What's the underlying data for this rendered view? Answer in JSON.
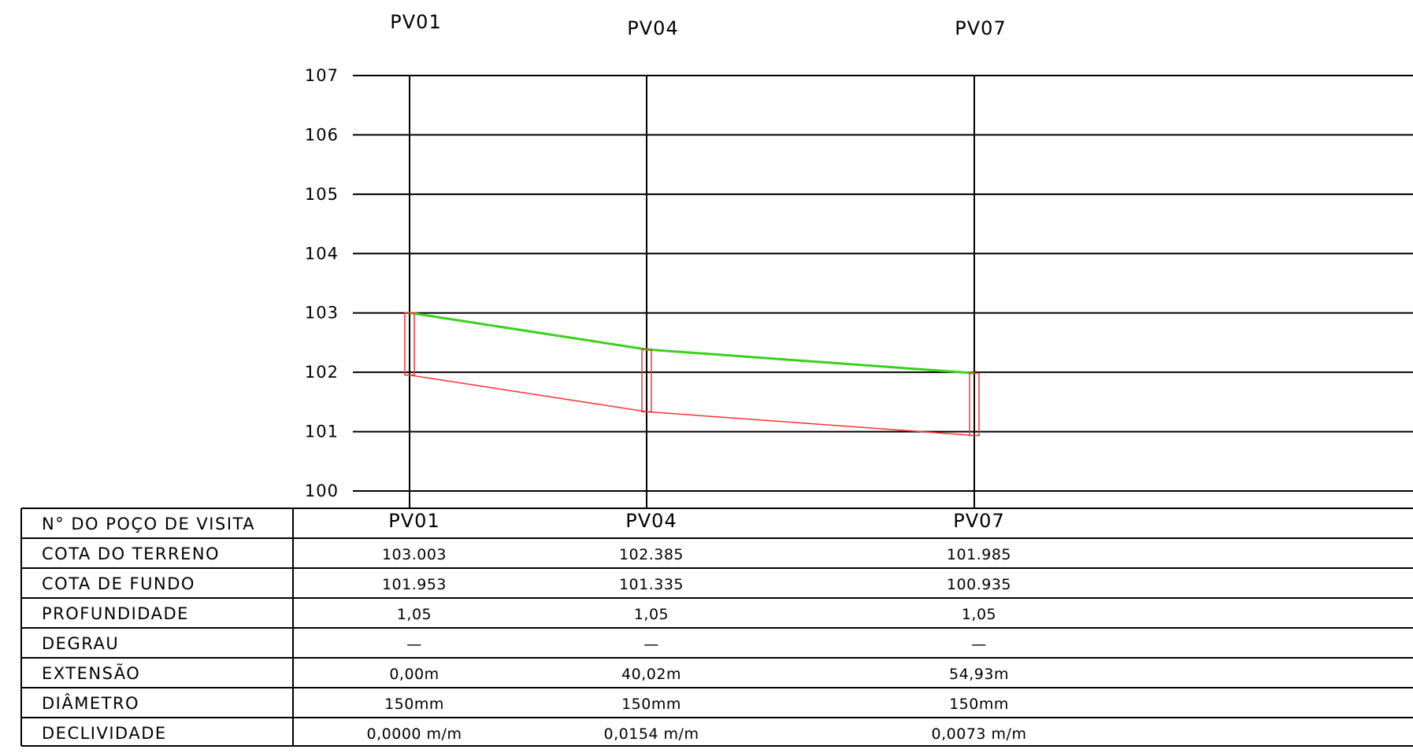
{
  "elevation_axis": {
    "labels": [
      "107",
      "106",
      "105",
      "104",
      "103",
      "102",
      "101",
      "100"
    ],
    "values": [
      107,
      106,
      105,
      104,
      103,
      102,
      101,
      100
    ],
    "range": [
      100,
      107
    ]
  },
  "stations": [
    {
      "id": "PV01",
      "cota_terreno": 103.003,
      "cota_fundo": 101.953,
      "values": {
        "pv": "PV01",
        "terreno": "103.003",
        "fundo": "101.953",
        "profundidade": "1,05",
        "degrau": "—",
        "extensao": "0,00m",
        "diametro": "150mm",
        "declividade": "0,0000  m/m"
      }
    },
    {
      "id": "PV04",
      "cota_terreno": 102.385,
      "cota_fundo": 101.335,
      "values": {
        "pv": "PV04",
        "terreno": "102.385",
        "fundo": "101.335",
        "profundidade": "1,05",
        "degrau": "—",
        "extensao": "40,02m",
        "diametro": "150mm",
        "declividade": "0,0154  m/m"
      }
    },
    {
      "id": "PV07",
      "cota_terreno": 101.985,
      "cota_fundo": 100.935,
      "values": {
        "pv": "PV07",
        "terreno": "101.985",
        "fundo": "100.935",
        "profundidade": "1,05",
        "degrau": "—",
        "extensao": "54,93m",
        "diametro": "150mm",
        "declividade": "0,0073  m/m"
      }
    }
  ],
  "table": {
    "rows": [
      {
        "key": "pv",
        "label": "N° DO POÇO DE VISITA"
      },
      {
        "key": "terreno",
        "label": "COTA DO TERRENO"
      },
      {
        "key": "fundo",
        "label": "COTA DE FUNDO"
      },
      {
        "key": "profundidade",
        "label": "PROFUNDIDADE"
      },
      {
        "key": "degrau",
        "label": "DEGRAU"
      },
      {
        "key": "extensao",
        "label": "EXTENSÃO"
      },
      {
        "key": "diametro",
        "label": "DIÂMETRO"
      },
      {
        "key": "declividade",
        "label": "DECLIVIDADE"
      }
    ]
  },
  "colors": {
    "terrain_line": "#3ad11a",
    "invert_line": "#ff3030",
    "grid": "#000000"
  }
}
